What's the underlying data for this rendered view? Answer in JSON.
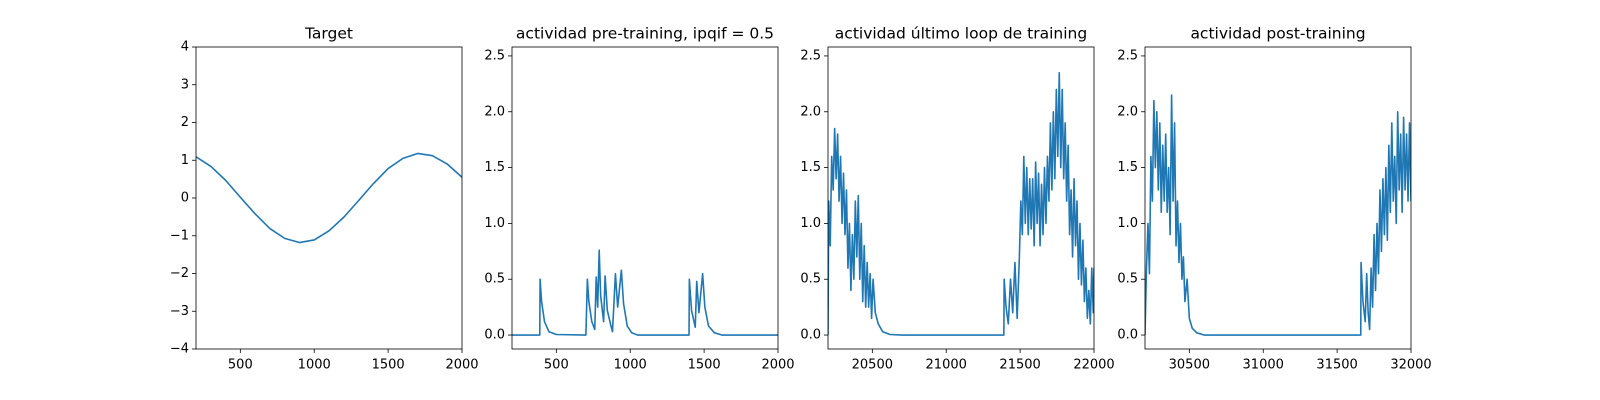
{
  "chart_data": [
    {
      "type": "line",
      "title": "Target",
      "color": "#1f77b4",
      "x": [
        200,
        300,
        400,
        500,
        600,
        700,
        800,
        900,
        1000,
        1100,
        1200,
        1300,
        1400,
        1500,
        1600,
        1700,
        1800,
        1900,
        2000
      ],
      "values": [
        1.09,
        0.84,
        0.47,
        0.02,
        -0.42,
        -0.81,
        -1.07,
        -1.18,
        -1.11,
        -0.87,
        -0.51,
        -0.07,
        0.38,
        0.78,
        1.05,
        1.18,
        1.12,
        0.9,
        0.55
      ],
      "xlim": [
        200,
        2000
      ],
      "ylim": [
        -4,
        4
      ],
      "xticks": [
        500,
        1000,
        1500,
        2000
      ],
      "yticks": [
        {
          "value": -4,
          "label": "−4"
        },
        {
          "value": -3,
          "label": "−3"
        },
        {
          "value": -2,
          "label": "−2"
        },
        {
          "value": -1,
          "label": "−1"
        },
        0,
        1,
        2,
        3,
        4
      ]
    },
    {
      "type": "line",
      "title": "actividad pre-training, ipqif = 0.5",
      "color": "#1f77b4",
      "x": [
        200,
        388,
        390,
        400,
        420,
        450,
        500,
        700,
        710,
        720,
        740,
        760,
        770,
        780,
        790,
        800,
        820,
        830,
        845,
        870,
        880,
        900,
        915,
        940,
        955,
        980,
        1010,
        1050,
        1398,
        1400,
        1415,
        1440,
        1450,
        1465,
        1490,
        1505,
        1530,
        1570,
        1620,
        2000
      ],
      "values": [
        0,
        0,
        0.5,
        0.3,
        0.12,
        0.03,
        0.005,
        0,
        0.5,
        0.3,
        0.12,
        0.05,
        0.52,
        0.25,
        0.76,
        0.35,
        0.12,
        0.53,
        0.22,
        0.08,
        0.03,
        0.55,
        0.25,
        0.58,
        0.28,
        0.08,
        0.02,
        0,
        0,
        0.5,
        0.22,
        0.07,
        0.48,
        0.2,
        0.55,
        0.25,
        0.08,
        0.02,
        0,
        0
      ],
      "xlim": [
        200,
        2000
      ],
      "ylim": [
        -0.125,
        2.58
      ],
      "xticks": [
        500,
        1000,
        1500,
        2000
      ],
      "yticks": [
        {
          "value": 0,
          "label": "0.0"
        },
        {
          "value": 0.5,
          "label": "0.5"
        },
        {
          "value": 1,
          "label": "1.0"
        },
        {
          "value": 1.5,
          "label": "1.5"
        },
        {
          "value": 2,
          "label": "2.0"
        },
        {
          "value": 2.5,
          "label": "2.5"
        }
      ]
    },
    {
      "type": "line",
      "title": "actividad último loop de training",
      "color": "#1f77b4",
      "x": [
        20200,
        20205,
        20215,
        20225,
        20235,
        20245,
        20255,
        20265,
        20275,
        20285,
        20295,
        20305,
        20315,
        20325,
        20335,
        20345,
        20355,
        20365,
        20375,
        20385,
        20395,
        20405,
        20415,
        20425,
        20435,
        20445,
        20455,
        20465,
        20475,
        20485,
        20495,
        20505,
        20520,
        20540,
        20570,
        20620,
        20700,
        21390,
        21392,
        21405,
        21420,
        21435,
        21450,
        21465,
        21480,
        21495,
        21505,
        21515,
        21525,
        21535,
        21545,
        21555,
        21565,
        21575,
        21585,
        21595,
        21605,
        21615,
        21625,
        21635,
        21645,
        21655,
        21665,
        21675,
        21685,
        21695,
        21705,
        21715,
        21725,
        21735,
        21745,
        21755,
        21765,
        21775,
        21785,
        21795,
        21805,
        21815,
        21825,
        21835,
        21845,
        21855,
        21865,
        21875,
        21885,
        21895,
        21905,
        21915,
        21925,
        21935,
        21945,
        21955,
        21965,
        21975,
        21985,
        21995,
        22000
      ],
      "values": [
        0,
        1.2,
        0.8,
        1.6,
        1.3,
        1.85,
        1.4,
        1.8,
        1.2,
        1.6,
        1.0,
        1.45,
        0.9,
        1.3,
        0.6,
        1.0,
        0.4,
        0.9,
        0.5,
        1.2,
        0.7,
        1.25,
        0.5,
        1.0,
        0.3,
        0.8,
        0.25,
        0.65,
        0.25,
        0.55,
        0.15,
        0.5,
        0.2,
        0.1,
        0.03,
        0.005,
        0,
        0,
        0.5,
        0.25,
        0.1,
        0.5,
        0.2,
        0.65,
        0.15,
        0.7,
        1.2,
        0.9,
        1.6,
        1.0,
        1.5,
        0.9,
        1.4,
        0.95,
        1.4,
        0.8,
        1.55,
        1.0,
        1.45,
        0.8,
        1.35,
        0.9,
        1.5,
        1.0,
        1.6,
        1.2,
        1.9,
        1.3,
        2.0,
        1.4,
        2.2,
        1.6,
        2.35,
        1.5,
        2.2,
        1.4,
        1.9,
        1.2,
        1.7,
        0.9,
        1.3,
        0.7,
        1.4,
        0.8,
        1.2,
        0.5,
        1.0,
        0.45,
        0.85,
        0.3,
        0.6,
        0.15,
        0.4,
        0.1,
        0.6,
        0.2,
        0.6
      ],
      "xlim": [
        20200,
        22000
      ],
      "ylim": [
        -0.125,
        2.58
      ],
      "xticks": [
        20500,
        21000,
        21500,
        22000
      ],
      "yticks": [
        {
          "value": 0,
          "label": "0.0"
        },
        {
          "value": 0.5,
          "label": "0.5"
        },
        {
          "value": 1,
          "label": "1.0"
        },
        {
          "value": 1.5,
          "label": "1.5"
        },
        {
          "value": 2,
          "label": "2.0"
        },
        {
          "value": 2.5,
          "label": "2.5"
        }
      ]
    },
    {
      "type": "line",
      "title": "actividad post-training",
      "color": "#1f77b4",
      "x": [
        30200,
        30210,
        30220,
        30230,
        30240,
        30250,
        30260,
        30270,
        30280,
        30290,
        30300,
        30310,
        30320,
        30330,
        30340,
        30350,
        30360,
        30370,
        30380,
        30390,
        30400,
        30410,
        30420,
        30430,
        30440,
        30450,
        30460,
        30470,
        30485,
        30500,
        30520,
        30550,
        30600,
        31660,
        31662,
        31675,
        31690,
        31700,
        31710,
        31720,
        31730,
        31740,
        31750,
        31760,
        31770,
        31780,
        31790,
        31800,
        31810,
        31820,
        31830,
        31840,
        31850,
        31860,
        31870,
        31880,
        31890,
        31900,
        31910,
        31920,
        31930,
        31940,
        31950,
        31960,
        31970,
        31980,
        31990,
        32000
      ],
      "values": [
        0,
        0.6,
        1.0,
        0.55,
        1.6,
        1.2,
        2.1,
        1.5,
        2.0,
        1.3,
        1.9,
        1.1,
        1.7,
        1.2,
        1.8,
        1.1,
        1.5,
        0.9,
        2.15,
        1.2,
        1.9,
        0.8,
        1.2,
        0.65,
        1.0,
        0.5,
        0.7,
        0.3,
        0.5,
        0.15,
        0.06,
        0.02,
        0,
        0,
        0.65,
        0.3,
        0.12,
        0.55,
        0.2,
        0.05,
        0.6,
        0.25,
        0.9,
        0.4,
        1.0,
        0.55,
        1.3,
        0.75,
        1.4,
        0.9,
        1.5,
        0.85,
        1.7,
        1.1,
        1.9,
        1.2,
        1.6,
        1.0,
        2.0,
        1.3,
        1.8,
        1.1,
        1.95,
        1.3,
        1.8,
        1.2,
        1.9,
        1.2
      ],
      "xlim": [
        30200,
        32000
      ],
      "ylim": [
        -0.125,
        2.58
      ],
      "xticks": [
        30500,
        31000,
        31500,
        32000
      ],
      "yticks": [
        {
          "value": 0,
          "label": "0.0"
        },
        {
          "value": 0.5,
          "label": "0.5"
        },
        {
          "value": 1,
          "label": "1.0"
        },
        {
          "value": 1.5,
          "label": "1.5"
        },
        {
          "value": 2,
          "label": "2.0"
        },
        {
          "value": 2.5,
          "label": "2.5"
        }
      ]
    }
  ]
}
